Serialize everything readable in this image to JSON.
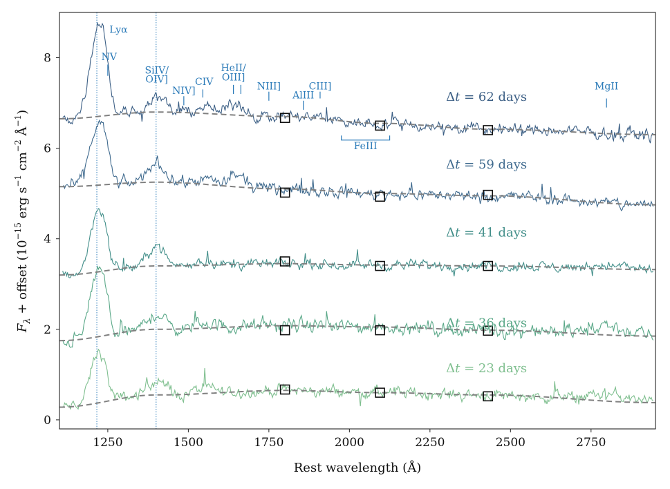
{
  "chart_data": {
    "type": "line",
    "xlabel": "Rest wavelength (Å)",
    "ylabel_parts": {
      "f": "F",
      "sub": "λ",
      "rest": " + offset (10",
      "exp": "−15",
      "unit_a": " erg s",
      "unit_a_exp": "−1",
      "unit_b": " cm",
      "unit_b_exp": "−2",
      "unit_c": " Å",
      "unit_c_exp": "−1",
      "close": ")"
    },
    "xlim": [
      1100,
      2950
    ],
    "ylim": [
      -0.2,
      9.0
    ],
    "xticks": [
      1250,
      1500,
      1750,
      2000,
      2250,
      2500,
      2750
    ],
    "yticks": [
      0,
      2,
      4,
      6,
      8
    ],
    "vlines": [
      1216,
      1400
    ],
    "series": [
      {
        "name": "Δt = 23 days",
        "epoch_prefix": "Δ",
        "epoch_var": "t",
        "epoch_rest": " = 23 days",
        "offset": 0.0,
        "color": "#7fbf8f",
        "label_y": 1.05,
        "continuum": [
          [
            1100,
            0.28
          ],
          [
            1400,
            0.55
          ],
          [
            1800,
            0.65
          ],
          [
            2100,
            0.6
          ],
          [
            2430,
            0.55
          ],
          [
            2950,
            0.38
          ]
        ],
        "features": [
          [
            1216,
            1.0,
            22
          ],
          [
            1240,
            0.3,
            15
          ],
          [
            1400,
            0.35,
            25
          ],
          [
            1550,
            0.12,
            30
          ],
          [
            2800,
            0.15,
            60
          ]
        ],
        "noise": 0.12
      },
      {
        "name": "Δt = 36 days",
        "epoch_prefix": "Δ",
        "epoch_var": "t",
        "epoch_rest": " = 36 days",
        "offset": 1.5,
        "color": "#5aa888",
        "label_y": 2.05,
        "continuum": [
          [
            1100,
            1.75
          ],
          [
            1400,
            2.0
          ],
          [
            1800,
            2.08
          ],
          [
            2100,
            2.05
          ],
          [
            2430,
            1.98
          ],
          [
            2950,
            1.85
          ]
        ],
        "features": [
          [
            1216,
            1.35,
            22
          ],
          [
            1240,
            0.4,
            15
          ],
          [
            1400,
            0.35,
            25
          ],
          [
            1550,
            0.12,
            30
          ],
          [
            2800,
            0.18,
            60
          ]
        ],
        "noise": 0.14
      },
      {
        "name": "Δt = 41 days",
        "epoch_prefix": "Δ",
        "epoch_var": "t",
        "epoch_rest": " = 41 days",
        "offset": 3.0,
        "color": "#438f8a",
        "label_y": 4.05,
        "continuum": [
          [
            1100,
            3.2
          ],
          [
            1400,
            3.4
          ],
          [
            1800,
            3.45
          ],
          [
            2100,
            3.42
          ],
          [
            2430,
            3.4
          ],
          [
            2950,
            3.32
          ]
        ],
        "features": [
          [
            1216,
            1.25,
            22
          ],
          [
            1240,
            0.4,
            15
          ],
          [
            1400,
            0.45,
            25
          ],
          [
            1550,
            0.1,
            30
          ],
          [
            2800,
            0.08,
            60
          ]
        ],
        "noise": 0.1
      },
      {
        "name": "Δt = 59 days",
        "epoch_prefix": "Δ",
        "epoch_var": "t",
        "epoch_rest": " = 59 days",
        "offset": 4.5,
        "color": "#3f6a8e",
        "label_y": 5.55,
        "continuum": [
          [
            1100,
            5.15
          ],
          [
            1400,
            5.25
          ],
          [
            1800,
            5.1
          ],
          [
            2100,
            5.0
          ],
          [
            2430,
            4.95
          ],
          [
            2950,
            4.75
          ]
        ],
        "features": [
          [
            1216,
            1.2,
            24
          ],
          [
            1240,
            0.45,
            15
          ],
          [
            1400,
            0.45,
            25
          ],
          [
            1550,
            0.12,
            30
          ],
          [
            1650,
            0.25,
            25
          ]
        ],
        "noise": 0.12
      },
      {
        "name": "Δt = 62 days",
        "epoch_prefix": "Δ",
        "epoch_var": "t",
        "epoch_rest": " = 62 days",
        "offset": 6.0,
        "color": "#3c5f85",
        "label_y": 7.05,
        "continuum": [
          [
            1100,
            6.65
          ],
          [
            1400,
            6.8
          ],
          [
            1800,
            6.7
          ],
          [
            2100,
            6.55
          ],
          [
            2430,
            6.42
          ],
          [
            2950,
            6.3
          ]
        ],
        "features": [
          [
            1216,
            1.8,
            24
          ],
          [
            1240,
            0.7,
            15
          ],
          [
            1400,
            0.35,
            25
          ],
          [
            1550,
            0.15,
            30
          ],
          [
            1650,
            0.25,
            25
          ]
        ],
        "noise": 0.12
      }
    ],
    "photometry": [
      [
        [
          1800,
          0.67
        ],
        [
          2095,
          0.6
        ],
        [
          2430,
          0.52
        ]
      ],
      [
        [
          1800,
          1.98
        ],
        [
          2095,
          1.98
        ],
        [
          2430,
          1.97
        ]
      ],
      [
        [
          1800,
          3.5
        ],
        [
          2095,
          3.4
        ],
        [
          2430,
          3.4
        ]
      ],
      [
        [
          1800,
          5.02
        ],
        [
          2095,
          4.93
        ],
        [
          2430,
          4.97
        ]
      ],
      [
        [
          1800,
          6.67
        ],
        [
          2095,
          6.5
        ],
        [
          2430,
          6.4
        ]
      ]
    ],
    "line_ids": [
      {
        "label": "Lyα",
        "label_x": 1255,
        "label_y": 8.55,
        "ticks": []
      },
      {
        "label": "NV",
        "label_x": 1254,
        "label_y": 7.95,
        "ticks": [
          [
            1250,
            7.6,
            7.85
          ]
        ]
      },
      {
        "label": "SiIV/",
        "label_x": 1402,
        "label_y": 7.65,
        "ticks": []
      },
      {
        "label": "OIV]",
        "label_x": 1402,
        "label_y": 7.45,
        "ticks": []
      },
      {
        "label": "NIV]",
        "label_x": 1486,
        "label_y": 7.2,
        "ticks": [
          [
            1486,
            6.95,
            7.15
          ],
          [
            1545,
            7.12,
            7.3
          ]
        ]
      },
      {
        "label": "CIV",
        "label_x": 1549,
        "label_y": 7.4,
        "ticks": []
      },
      {
        "label": "HeII/",
        "label_x": 1640,
        "label_y": 7.7,
        "ticks": []
      },
      {
        "label": "OIII]",
        "label_x": 1640,
        "label_y": 7.5,
        "ticks": [
          [
            1640,
            7.2,
            7.4
          ],
          [
            1663,
            7.2,
            7.4
          ]
        ]
      },
      {
        "label": "NIII]",
        "label_x": 1750,
        "label_y": 7.3,
        "ticks": [
          [
            1750,
            7.05,
            7.25
          ]
        ]
      },
      {
        "label": "AlIII",
        "label_x": 1857,
        "label_y": 7.1,
        "ticks": [
          [
            1857,
            6.85,
            7.05
          ]
        ]
      },
      {
        "label": "CIII]",
        "label_x": 1909,
        "label_y": 7.3,
        "ticks": [
          [
            1909,
            7.1,
            7.25
          ]
        ]
      },
      {
        "label": "MgII",
        "label_x": 2798,
        "label_y": 7.3,
        "ticks": [
          [
            2798,
            6.9,
            7.1
          ]
        ]
      },
      {
        "label": "FeIII",
        "label_x": 2050,
        "label_y": 5.98,
        "bracket": [
          1975,
          2125,
          6.28,
          6.18
        ]
      }
    ]
  }
}
